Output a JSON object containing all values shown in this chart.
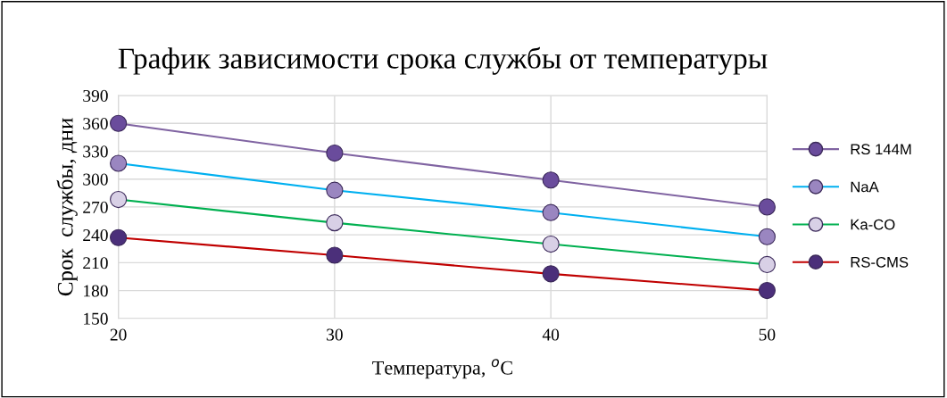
{
  "chart_data": {
    "type": "line",
    "title": "График зависимости срока службы от температуры",
    "xlabel": "Температура, $^{o}$С",
    "ylabel": "Срок  службы, дни",
    "x": [
      20,
      30,
      40,
      50
    ],
    "xlim": [
      20,
      50
    ],
    "xticks": [
      20,
      30,
      40,
      50
    ],
    "ylim": [
      150,
      390
    ],
    "yticks": [
      150,
      180,
      210,
      240,
      270,
      300,
      330,
      360,
      390
    ],
    "grid": true,
    "legend": "right",
    "marker": "circle",
    "series": [
      {
        "name": "RS 144M",
        "color": "#8064a2",
        "colors": [
          "#6a4c9c",
          "#6a4c9c",
          "#6a4c9c",
          "#6a4c9c"
        ],
        "values": [
          360,
          328,
          299,
          270
        ]
      },
      {
        "name": "NaA",
        "color": "#00b0f0",
        "colors": [
          "#9a86c0",
          "#9a86c0",
          "#9a86c0",
          "#9a86c0"
        ],
        "values": [
          317,
          288,
          264,
          238
        ]
      },
      {
        "name": "Ka-CO",
        "color": "#00b050",
        "colors": [
          "#d8d0e6",
          "#d8d0e6",
          "#d8d0e6",
          "#d8d0e6"
        ],
        "values": [
          278,
          253,
          230,
          208
        ]
      },
      {
        "name": "RS-CMS",
        "color": "#c00000",
        "colors": [
          "#4b2f7a",
          "#4b2f7a",
          "#4b2f7a",
          "#4b2f7a"
        ],
        "values": [
          237,
          218,
          198,
          180
        ]
      }
    ]
  }
}
